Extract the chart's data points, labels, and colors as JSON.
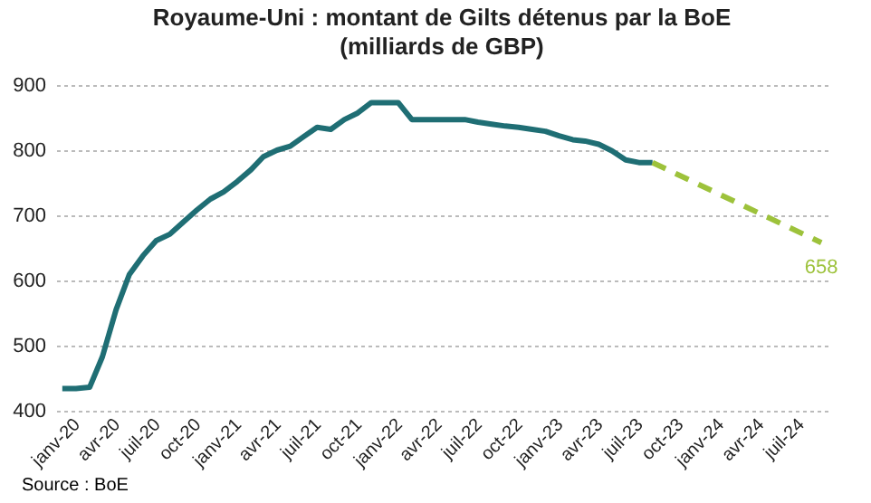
{
  "chart_data": {
    "type": "line",
    "title": "Royaume-Uni : montant de Gilts détenus par la BoE",
    "subtitle": "(milliards de GBP)",
    "series": [
      {
        "color": "#1f6e74",
        "line_style": "solid",
        "x": [
          "2019-12-15",
          "2020-01-15",
          "2020-02-15",
          "2020-03-15",
          "2020-04-15",
          "2020-05-15",
          "2020-06-15",
          "2020-07-15",
          "2020-08-15",
          "2020-09-15",
          "2020-10-15",
          "2020-11-15",
          "2020-12-15",
          "2021-01-15",
          "2021-02-15",
          "2021-03-15",
          "2021-04-15",
          "2021-05-15",
          "2021-06-15",
          "2021-07-15",
          "2021-08-15",
          "2021-09-15",
          "2021-10-15",
          "2021-11-15",
          "2021-12-15",
          "2022-01-15",
          "2022-02-15",
          "2022-03-15",
          "2022-04-15",
          "2022-05-15",
          "2022-06-15",
          "2022-07-15",
          "2022-08-15",
          "2022-09-15",
          "2022-10-15",
          "2022-11-15",
          "2022-12-15",
          "2023-01-15",
          "2023-02-15",
          "2023-03-15",
          "2023-04-15",
          "2023-05-15",
          "2023-06-15",
          "2023-07-15",
          "2023-08-15"
        ],
        "values": [
          434,
          434,
          436,
          483,
          555,
          609,
          638,
          661,
          671,
          690,
          708,
          725,
          736,
          752,
          770,
          790,
          800,
          806,
          821,
          835,
          832,
          847,
          857,
          873,
          873,
          873,
          847,
          847,
          847,
          847,
          847,
          843,
          840,
          837,
          835,
          832,
          829,
          822,
          816,
          814,
          809,
          799,
          785,
          781,
          781
        ]
      },
      {
        "color": "#9dc23b",
        "line_style": "dashed",
        "x": [
          "2023-08-15",
          "2024-09-01"
        ],
        "values": [
          781,
          658
        ],
        "value_labels": [
          null,
          "658"
        ]
      }
    ],
    "xlim": [
      "2019-12-01",
      "2024-09-15"
    ],
    "xticks": [
      {
        "value": "2020-01-01",
        "label": "janv-20"
      },
      {
        "value": "2020-04-01",
        "label": "avr-20"
      },
      {
        "value": "2020-07-01",
        "label": "juil-20"
      },
      {
        "value": "2020-10-01",
        "label": "oct-20"
      },
      {
        "value": "2021-01-01",
        "label": "janv-21"
      },
      {
        "value": "2021-04-01",
        "label": "avr-21"
      },
      {
        "value": "2021-07-01",
        "label": "juil-21"
      },
      {
        "value": "2021-10-01",
        "label": "oct-21"
      },
      {
        "value": "2022-01-01",
        "label": "janv-22"
      },
      {
        "value": "2022-04-01",
        "label": "avr-22"
      },
      {
        "value": "2022-07-01",
        "label": "juil-22"
      },
      {
        "value": "2022-10-01",
        "label": "oct-22"
      },
      {
        "value": "2023-01-01",
        "label": "janv-23"
      },
      {
        "value": "2023-04-01",
        "label": "avr-23"
      },
      {
        "value": "2023-07-01",
        "label": "juil-23"
      },
      {
        "value": "2023-10-01",
        "label": "oct-23"
      },
      {
        "value": "2024-01-01",
        "label": "janv-24"
      },
      {
        "value": "2024-04-01",
        "label": "avr-24"
      },
      {
        "value": "2024-07-01",
        "label": "juil-24"
      }
    ],
    "ylim": [
      400,
      900
    ],
    "yticks": [
      400,
      500,
      600,
      700,
      800,
      900
    ],
    "grid": "y",
    "annotations": [
      "Source : BoE"
    ]
  }
}
